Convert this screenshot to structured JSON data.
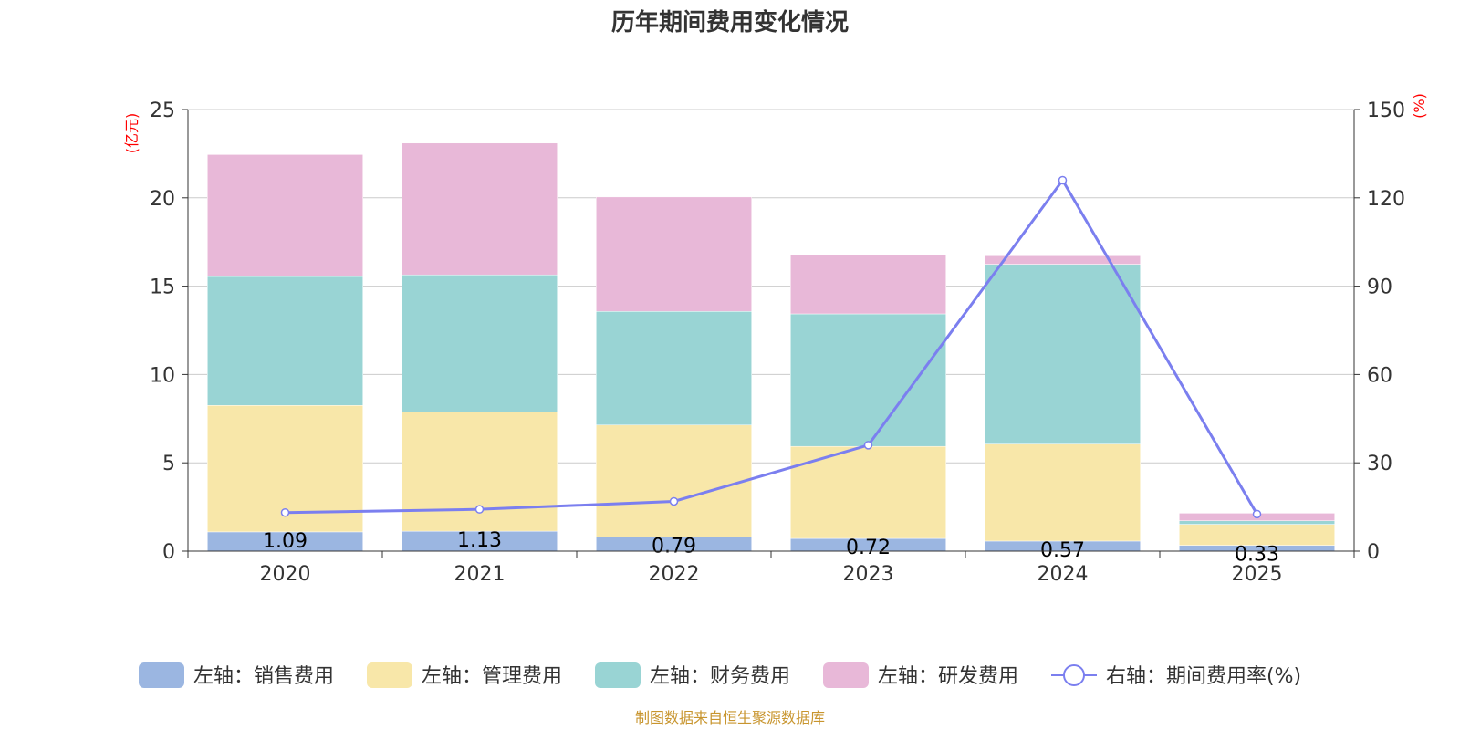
{
  "chart_data": {
    "type": "bar",
    "title": "历年期间费用变化情况",
    "categories": [
      "2020",
      "2021",
      "2022",
      "2023",
      "2024",
      "2025"
    ],
    "left_axis": {
      "unit": "(亿元)",
      "ylim": [
        0,
        25
      ],
      "ticks": [
        "0",
        "5",
        "10",
        "15",
        "20",
        "25"
      ]
    },
    "right_axis": {
      "unit": "(%)",
      "ylim": [
        0,
        150
      ],
      "ticks": [
        "0",
        "30",
        "60",
        "90",
        "120",
        "150"
      ]
    },
    "series": [
      {
        "name": "左轴：销售费用",
        "type": "bar",
        "axis": "left",
        "color": "#9bb6e1",
        "values": [
          1.09,
          1.13,
          0.79,
          0.72,
          0.57,
          0.33
        ],
        "labels": [
          "1.09",
          "1.13",
          "0.79",
          "0.72",
          "0.57",
          "0.33"
        ]
      },
      {
        "name": "左轴：管理费用",
        "type": "bar",
        "axis": "left",
        "color": "#f8e7a9",
        "values": [
          7.16,
          6.76,
          6.35,
          5.21,
          5.49,
          1.19
        ]
      },
      {
        "name": "左轴：财务费用",
        "type": "bar",
        "axis": "left",
        "color": "#99d4d4",
        "values": [
          7.3,
          7.75,
          6.43,
          7.5,
          10.18,
          0.2
        ]
      },
      {
        "name": "左轴：研发费用",
        "type": "bar",
        "axis": "left",
        "color": "#e8b8d8",
        "values": [
          6.9,
          7.46,
          6.48,
          3.34,
          0.48,
          0.43
        ]
      },
      {
        "name": "右轴：期间费用率(%)",
        "type": "line",
        "axis": "right",
        "color": "#7b7fef",
        "values": [
          13.1,
          14.2,
          16.9,
          36.0,
          126.0,
          12.6
        ]
      }
    ],
    "grid": true,
    "legend": "bottom-center",
    "source_note": "制图数据来自恒生聚源数据库"
  }
}
